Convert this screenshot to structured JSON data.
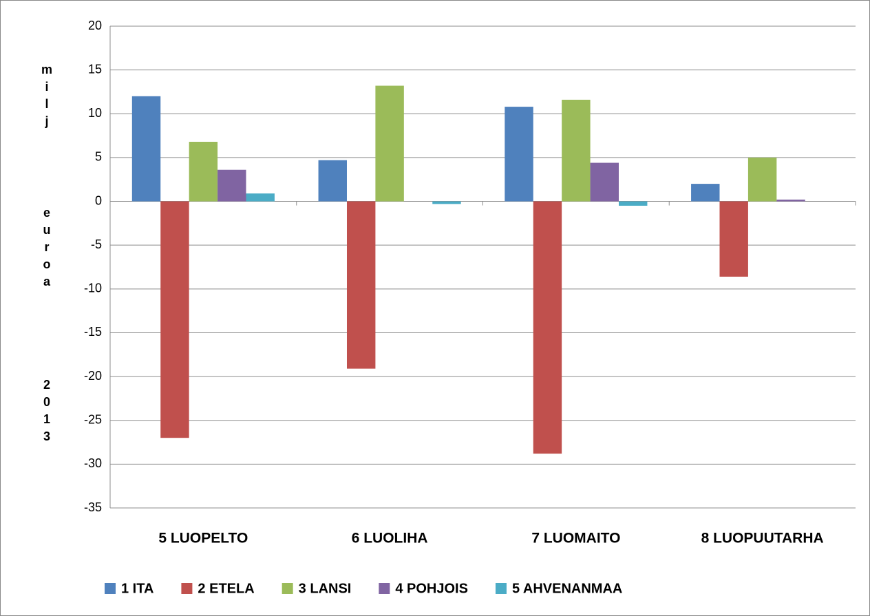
{
  "chart_data": {
    "type": "bar",
    "y_label": "milj euroa 2013",
    "categories": [
      "5 LUOPELTO",
      "6 LUOLIHA",
      "7 LUOMAITO",
      "8 LUOPUUTARHA"
    ],
    "series": [
      {
        "name": "1 ITA",
        "color": "#4f81bd",
        "values": [
          12,
          4.7,
          10.8,
          2.0
        ]
      },
      {
        "name": "2 ETELA",
        "color": "#c0504d",
        "values": [
          -27,
          -19.1,
          -28.8,
          -8.6
        ]
      },
      {
        "name": "3 LANSI",
        "color": "#9bbb59",
        "values": [
          6.8,
          13.2,
          11.6,
          5.0
        ]
      },
      {
        "name": "4 POHJOIS",
        "color": "#8064a2",
        "values": [
          3.6,
          0,
          4.4,
          0.2
        ]
      },
      {
        "name": "5 AHVENANMAA",
        "color": "#4bacc6",
        "values": [
          0.9,
          -0.3,
          -0.5,
          0
        ]
      }
    ],
    "ylim": [
      -35,
      20
    ],
    "yticks": [
      -35,
      -30,
      -25,
      -20,
      -15,
      -10,
      -5,
      0,
      5,
      10,
      15,
      20
    ],
    "grid": true,
    "legend": "bottom"
  }
}
